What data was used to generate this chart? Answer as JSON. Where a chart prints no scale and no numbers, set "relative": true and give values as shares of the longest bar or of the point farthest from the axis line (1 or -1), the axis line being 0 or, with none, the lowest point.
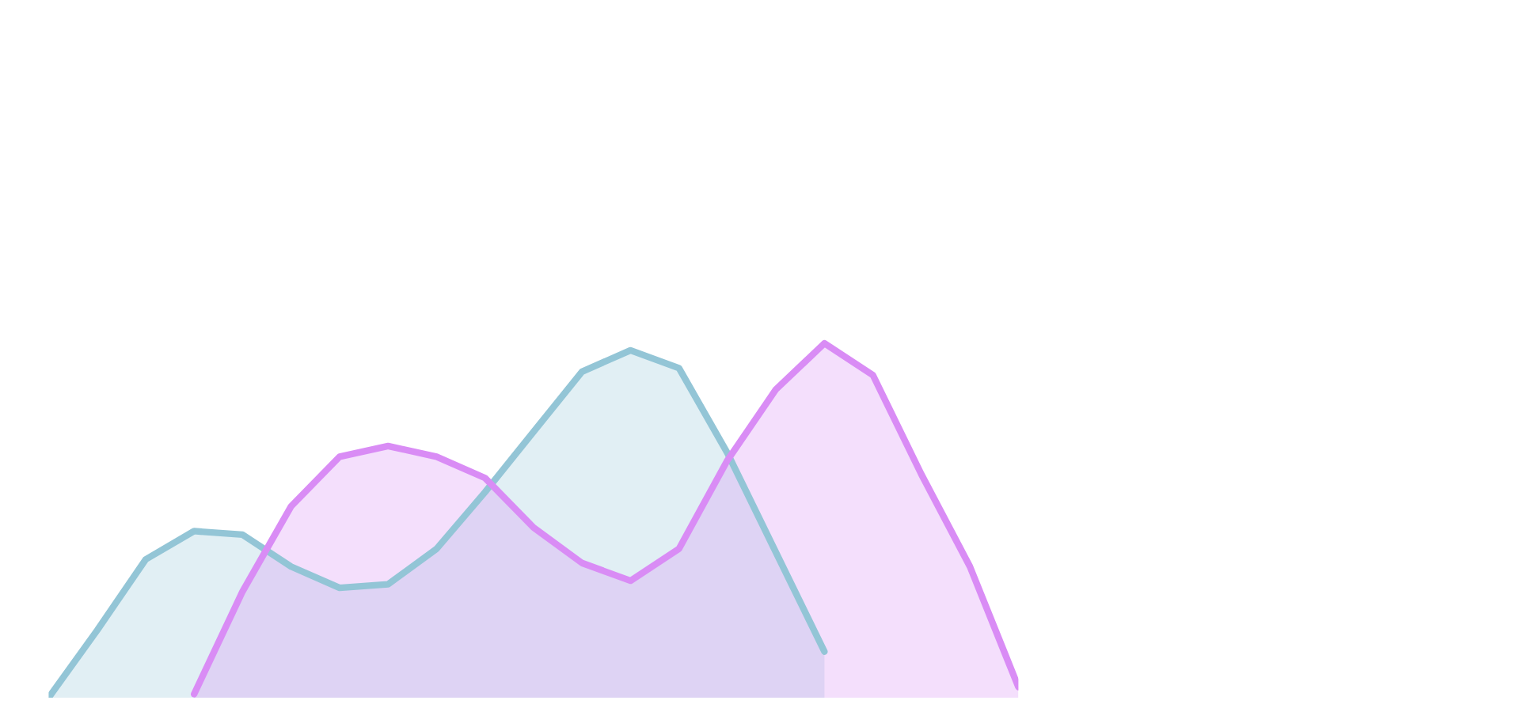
{
  "chart_data": {
    "type": "area",
    "relative": true,
    "categories": [
      null,
      null,
      null,
      null,
      null,
      null,
      null,
      null,
      null,
      null,
      null,
      null,
      null,
      null,
      null,
      null,
      null,
      null,
      null,
      null,
      null
    ],
    "series": [
      {
        "color": "#93c5d6",
        "values": [
          0,
          0.19,
          0.39,
          0.47,
          0.46,
          0.37,
          0.31,
          0.32,
          0.42,
          0.58,
          0.75,
          0.92,
          0.98,
          0.93,
          0.69,
          0.41,
          0.13,
          null,
          null,
          null,
          null
        ]
      },
      {
        "color": "#d98cf5",
        "values": [
          null,
          null,
          null,
          0.01,
          0.3,
          0.54,
          0.68,
          0.71,
          0.68,
          0.62,
          0.48,
          0.38,
          0.33,
          0.42,
          0.67,
          0.87,
          1.0,
          0.91,
          0.63,
          0.37,
          0.03
        ]
      }
    ]
  }
}
